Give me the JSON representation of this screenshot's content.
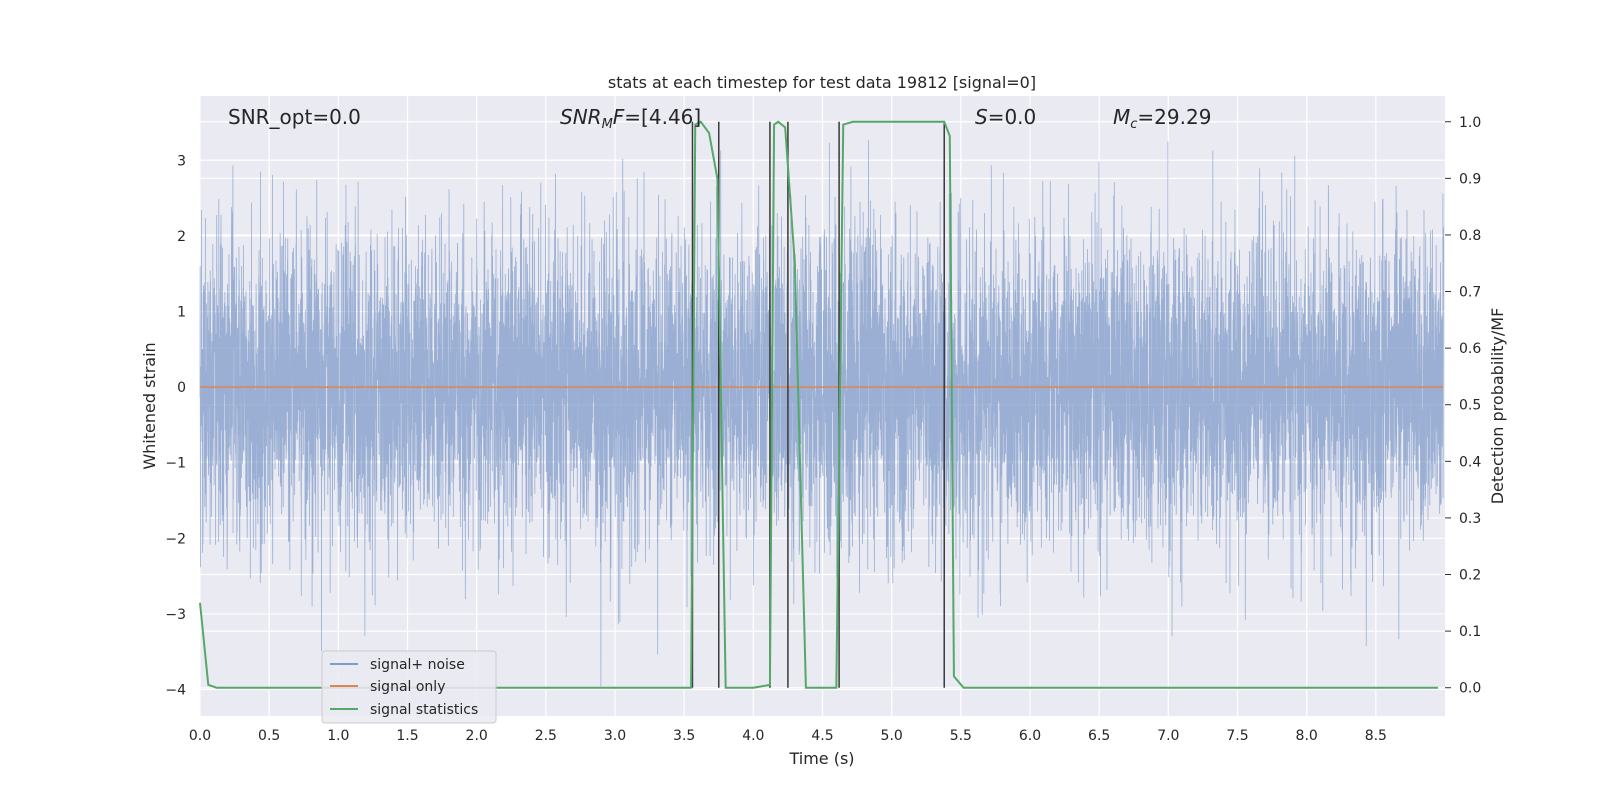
{
  "chart_data": {
    "type": "line",
    "title": "stats at each timestep for test data 19812 [signal=0]",
    "xlabel": "Time (s)",
    "ylabel": "Whitened strain",
    "y2label": "Detection probability/MF",
    "xlim": [
      0.0,
      9.0
    ],
    "ylim": [
      -4.35,
      3.85
    ],
    "y2lim": [
      -0.05,
      1.0455
    ],
    "xticks": [
      "0.0",
      "0.5",
      "1.0",
      "1.5",
      "2.0",
      "2.5",
      "3.0",
      "3.5",
      "4.0",
      "4.5",
      "5.0",
      "5.5",
      "6.0",
      "6.5",
      "7.0",
      "7.5",
      "8.0",
      "8.5"
    ],
    "yticks": [
      "3",
      "2",
      "1",
      "0",
      "−1",
      "−2",
      "−3",
      "−4"
    ],
    "y2ticks": [
      "1.0",
      "0.9",
      "0.8",
      "0.7",
      "0.6",
      "0.5",
      "0.4",
      "0.3",
      "0.2",
      "0.1",
      "0.0"
    ],
    "grid": true,
    "legend_position": "lower-left",
    "colors": {
      "noise": "#7f9bc8",
      "signal": "#dd8452",
      "stats": "#55a868",
      "vlines": "#3a3a3a",
      "background": "#eaeaf2",
      "grid": "#ffffff"
    },
    "annotations": {
      "snr_opt": "SNR_opt=0.0",
      "snr_mf_base": "SNR",
      "snr_mf_sub": "M",
      "snr_mf_rest": "F=[4.46]",
      "s_base": "S",
      "s_rest": "=0.0",
      "mc_base": "M",
      "mc_sub": "c",
      "mc_rest": "=29.29"
    },
    "series": [
      {
        "name": "signal+ noise",
        "kind": "noise",
        "envelope": "random whitened noise, std ~1.0, peaks up to ~3.2 and down to ~-4.0",
        "display_range": [
          -4.0,
          3.3
        ]
      },
      {
        "name": "signal only",
        "kind": "flat",
        "value": 0.0
      },
      {
        "name": "signal statistics",
        "kind": "stats",
        "x": [
          0.0,
          0.06,
          0.12,
          0.5,
          1.0,
          2.0,
          3.0,
          3.55,
          3.58,
          3.62,
          3.68,
          3.74,
          3.8,
          3.85,
          4.0,
          4.12,
          4.15,
          4.18,
          4.23,
          4.3,
          4.38,
          4.45,
          4.6,
          4.65,
          4.72,
          4.8,
          5.0,
          5.38,
          5.42,
          5.45,
          5.52,
          6.0,
          7.0,
          8.0,
          8.95
        ],
        "y": [
          0.15,
          0.005,
          0.0,
          0.0,
          0.0,
          0.0,
          0.0,
          0.0,
          0.995,
          1.0,
          0.98,
          0.9,
          0.0,
          0.0,
          0.0,
          0.005,
          0.995,
          1.0,
          0.99,
          0.75,
          0.0,
          0.0,
          0.0,
          0.995,
          1.0,
          1.0,
          1.0,
          1.0,
          0.975,
          0.02,
          0.0,
          0.0,
          0.0,
          0.0,
          0.0
        ]
      }
    ],
    "vlines_x": [
      3.56,
      3.75,
      4.12,
      4.25,
      4.62,
      5.38
    ],
    "noise_seed": 19812
  }
}
